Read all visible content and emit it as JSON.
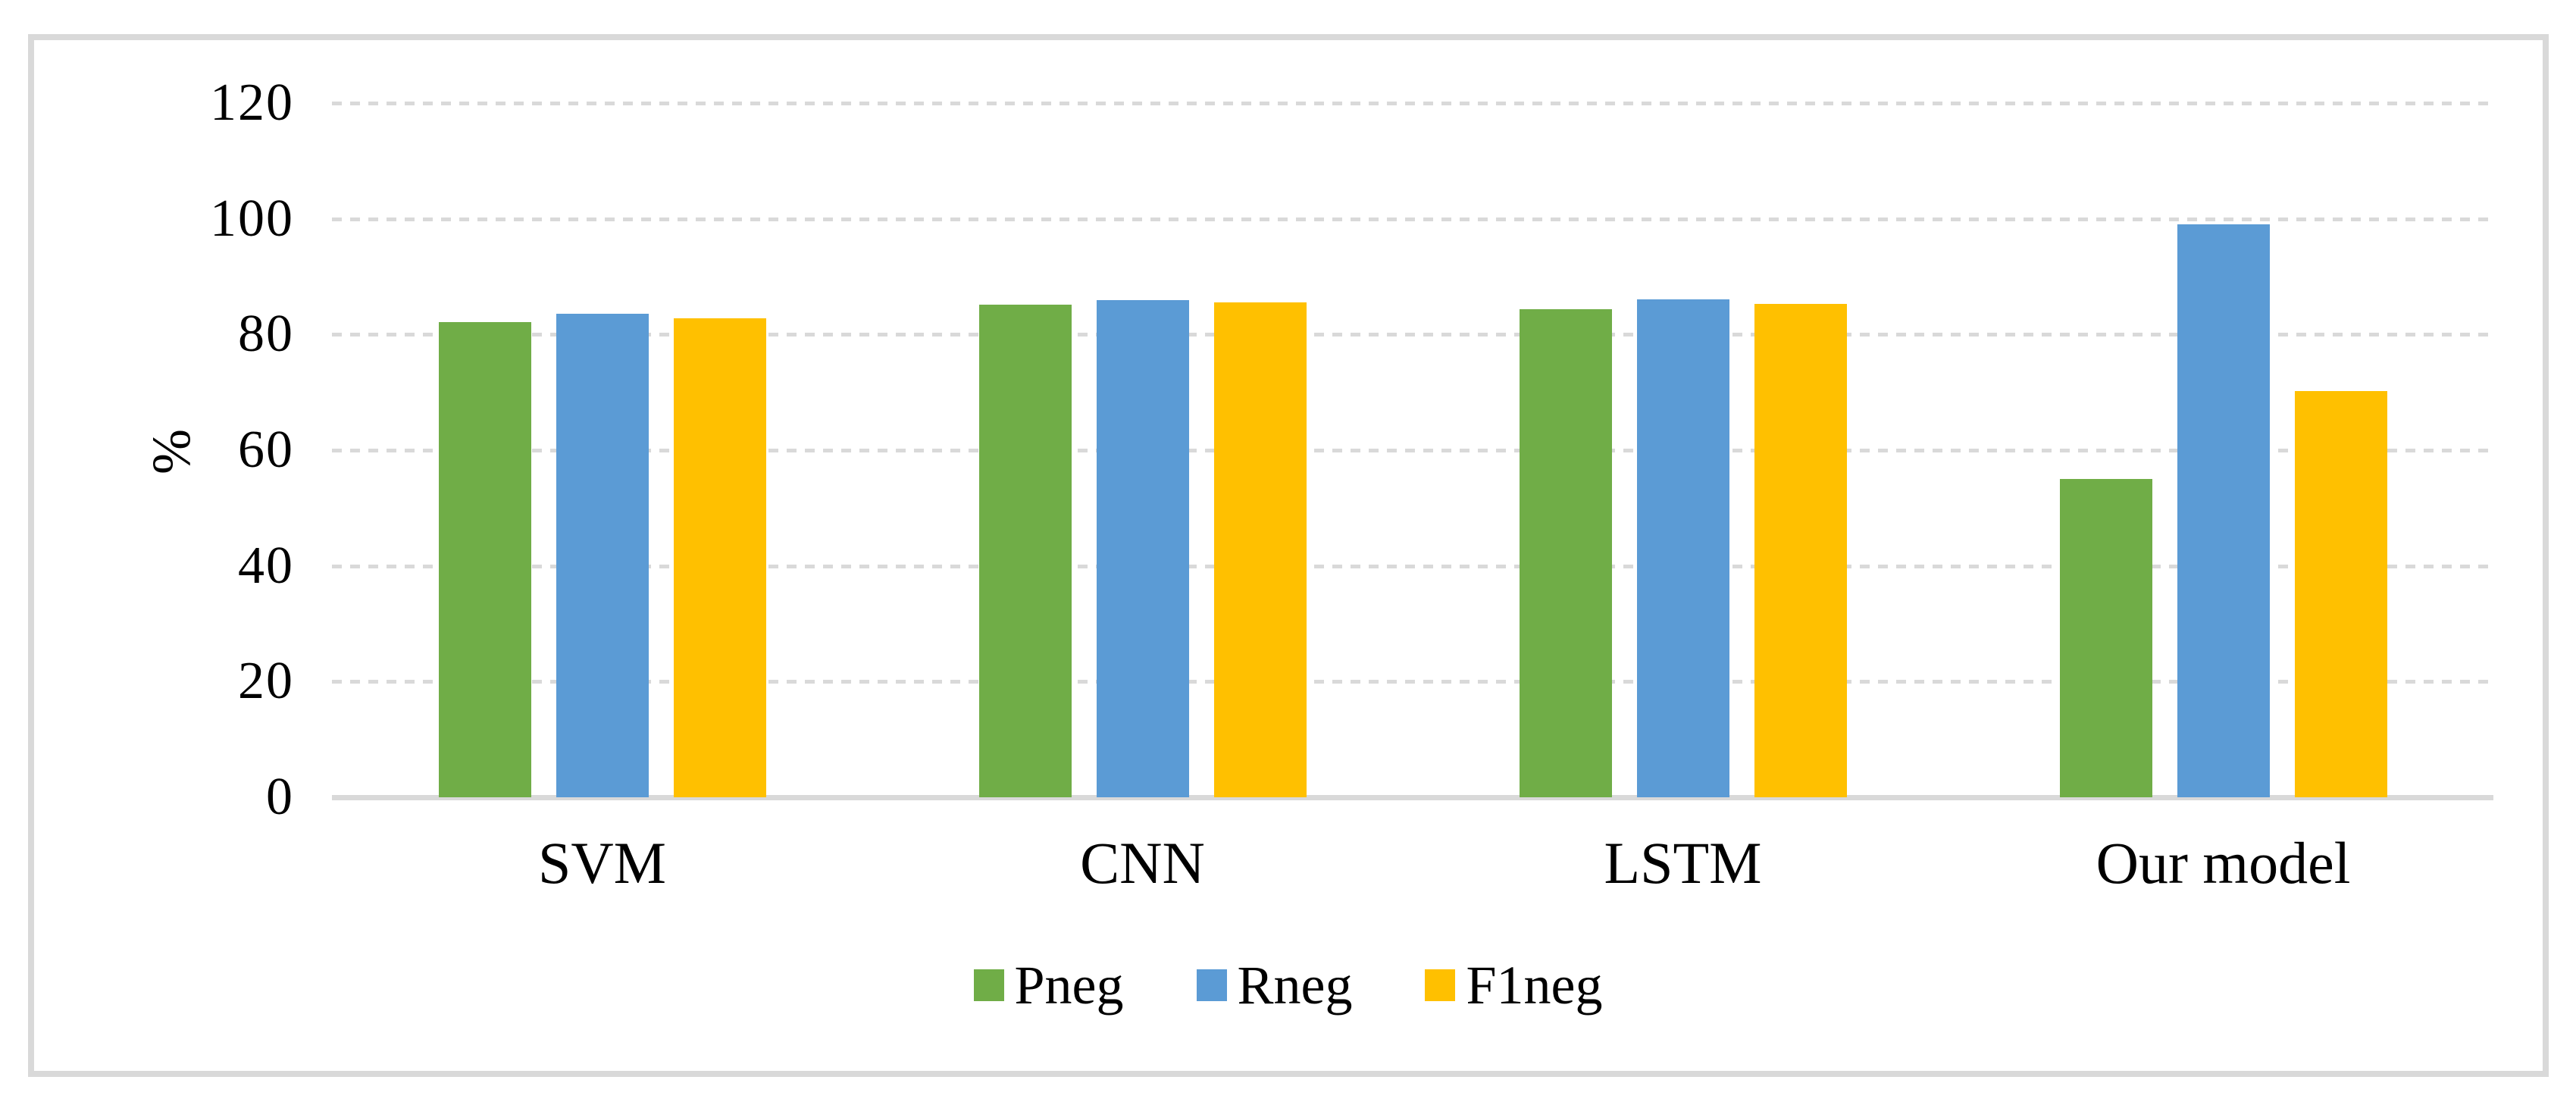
{
  "chart_data": {
    "type": "bar",
    "title": "",
    "xlabel": "",
    "ylabel": "%",
    "categories": [
      "SVM",
      "CNN",
      "LSTM",
      "Our model"
    ],
    "series": [
      {
        "name": "Pneg",
        "color": "#70AD47",
        "values": [
          82.2,
          85.2,
          84.4,
          55.0
        ]
      },
      {
        "name": "Rneg",
        "color": "#5B9BD5",
        "values": [
          83.6,
          85.9,
          86.1,
          99.0
        ]
      },
      {
        "name": "F1neg",
        "color": "#FFC000",
        "values": [
          82.8,
          85.5,
          85.3,
          70.2
        ]
      }
    ],
    "ylim": [
      0,
      120
    ],
    "yticks": [
      0,
      20,
      40,
      60,
      80,
      100,
      120
    ],
    "grid": "dashed-horizontal",
    "legend_position": "bottom"
  },
  "style": {
    "grid_color": "#D9D9D9",
    "axis_color": "#D9D9D9",
    "frame_color": "#D9D9D9",
    "text_color": "#000000",
    "background": "#FFFFFF"
  }
}
